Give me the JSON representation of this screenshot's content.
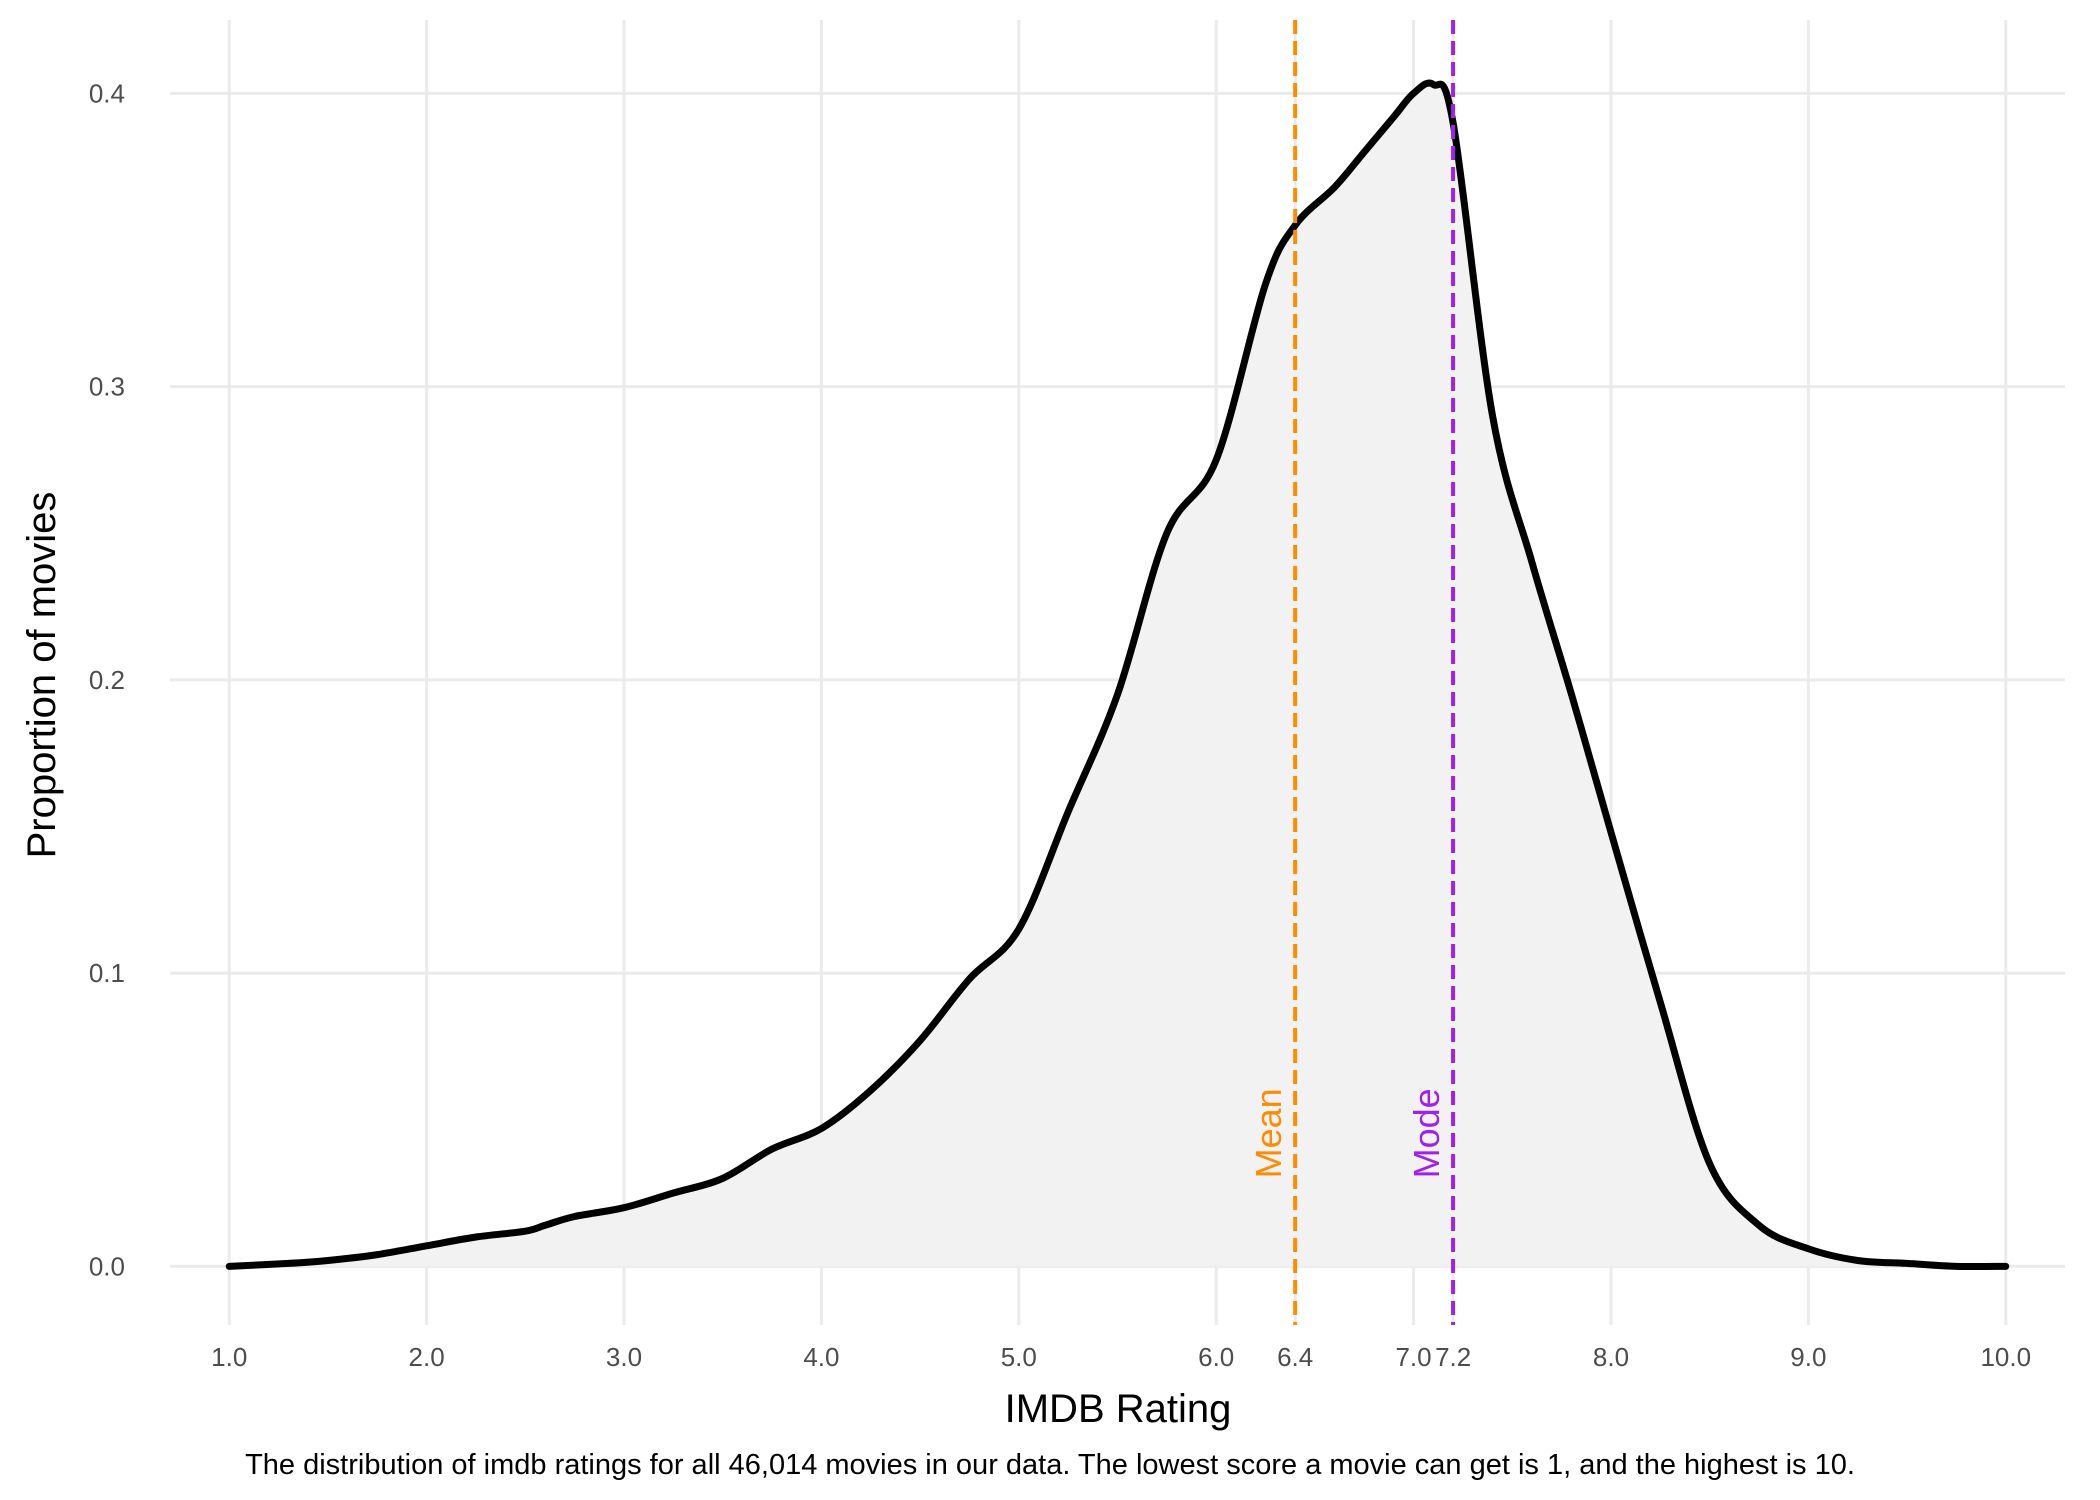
{
  "chart_data": {
    "type": "area",
    "xlabel": "IMDB Rating",
    "ylabel": "Proportion of movies",
    "caption": "The distribution of imdb ratings for all 46,014 movies in our data. The lowest score a movie can get is 1, and the highest is 10.",
    "xlim": [
      0.7,
      10.3
    ],
    "ylim": [
      -0.02,
      0.425
    ],
    "grid": true,
    "x_ticks": [
      "1.0",
      "2.0",
      "3.0",
      "4.0",
      "5.0",
      "6.0",
      "6.4",
      "7.0",
      "7.2",
      "8.0",
      "9.0",
      "10.0"
    ],
    "x_tick_values": [
      1.0,
      2.0,
      3.0,
      4.0,
      5.0,
      6.0,
      6.4,
      7.0,
      7.2,
      8.0,
      9.0,
      10.0
    ],
    "y_ticks": [
      "0.0",
      "0.1",
      "0.2",
      "0.3",
      "0.4"
    ],
    "y_tick_values": [
      0.0,
      0.1,
      0.2,
      0.3,
      0.4
    ],
    "series": [
      {
        "x": [
          1.0,
          1.3,
          1.5,
          1.75,
          2.0,
          2.25,
          2.5,
          2.6,
          2.75,
          3.0,
          3.25,
          3.5,
          3.75,
          4.0,
          4.25,
          4.5,
          4.75,
          5.0,
          5.25,
          5.5,
          5.75,
          6.0,
          6.25,
          6.4,
          6.6,
          6.75,
          6.9,
          7.0,
          7.1,
          7.2,
          7.4,
          7.6,
          7.8,
          8.0,
          8.25,
          8.5,
          8.75,
          9.0,
          9.25,
          9.5,
          9.75,
          10.0
        ],
        "y": [
          0.0,
          0.001,
          0.002,
          0.004,
          0.007,
          0.01,
          0.012,
          0.014,
          0.017,
          0.02,
          0.025,
          0.03,
          0.04,
          0.047,
          0.06,
          0.077,
          0.098,
          0.115,
          0.155,
          0.195,
          0.25,
          0.275,
          0.335,
          0.355,
          0.368,
          0.38,
          0.392,
          0.4,
          0.403,
          0.39,
          0.29,
          0.24,
          0.195,
          0.148,
          0.09,
          0.035,
          0.014,
          0.006,
          0.002,
          0.001,
          0.0,
          0.0
        ],
        "color": "#000000",
        "fill": "#f2f2f2"
      }
    ],
    "vlines": [
      {
        "label": "Mean",
        "x": 6.4,
        "color": "#ff8c00"
      },
      {
        "label": "Mode",
        "x": 7.2,
        "color": "#a020f0"
      }
    ]
  }
}
